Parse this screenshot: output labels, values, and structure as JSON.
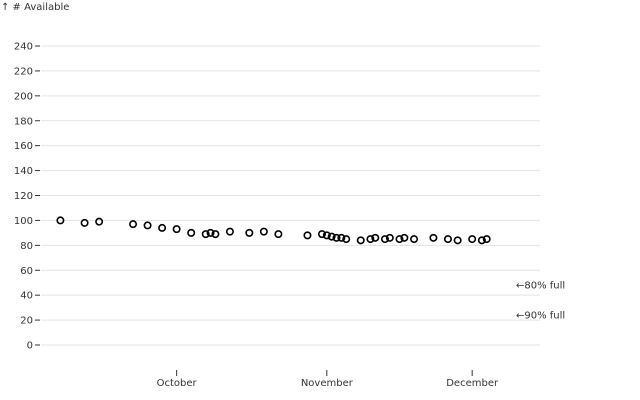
{
  "chart_data": {
    "type": "scatter",
    "ylabel": "↑ # Available",
    "ylim": [
      0,
      240
    ],
    "yticks": [
      0,
      20,
      40,
      60,
      80,
      100,
      120,
      140,
      160,
      180,
      200,
      220,
      240
    ],
    "grid": "horizontal",
    "xaxis": {
      "type": "date",
      "range": [
        "2023-09-03",
        "2023-12-15"
      ],
      "ticks": [
        {
          "label": "October",
          "date": "2023-10-01"
        },
        {
          "label": "November",
          "date": "2023-11-01"
        },
        {
          "label": "December",
          "date": "2023-12-01"
        }
      ]
    },
    "points": [
      {
        "date": "2023-09-07",
        "value": 100
      },
      {
        "date": "2023-09-12",
        "value": 98
      },
      {
        "date": "2023-09-15",
        "value": 99
      },
      {
        "date": "2023-09-22",
        "value": 97
      },
      {
        "date": "2023-09-25",
        "value": 96
      },
      {
        "date": "2023-09-28",
        "value": 94
      },
      {
        "date": "2023-10-01",
        "value": 93
      },
      {
        "date": "2023-10-04",
        "value": 90
      },
      {
        "date": "2023-10-07",
        "value": 89
      },
      {
        "date": "2023-10-08",
        "value": 90
      },
      {
        "date": "2023-10-09",
        "value": 89
      },
      {
        "date": "2023-10-12",
        "value": 91
      },
      {
        "date": "2023-10-16",
        "value": 90
      },
      {
        "date": "2023-10-19",
        "value": 91
      },
      {
        "date": "2023-10-22",
        "value": 89
      },
      {
        "date": "2023-10-28",
        "value": 88
      },
      {
        "date": "2023-10-31",
        "value": 89
      },
      {
        "date": "2023-11-01",
        "value": 88
      },
      {
        "date": "2023-11-02",
        "value": 87
      },
      {
        "date": "2023-11-03",
        "value": 86
      },
      {
        "date": "2023-11-04",
        "value": 86
      },
      {
        "date": "2023-11-05",
        "value": 85
      },
      {
        "date": "2023-11-08",
        "value": 84
      },
      {
        "date": "2023-11-10",
        "value": 85
      },
      {
        "date": "2023-11-11",
        "value": 86
      },
      {
        "date": "2023-11-13",
        "value": 85
      },
      {
        "date": "2023-11-14",
        "value": 86
      },
      {
        "date": "2023-11-16",
        "value": 85
      },
      {
        "date": "2023-11-17",
        "value": 86
      },
      {
        "date": "2023-11-19",
        "value": 85
      },
      {
        "date": "2023-11-23",
        "value": 86
      },
      {
        "date": "2023-11-26",
        "value": 85
      },
      {
        "date": "2023-11-28",
        "value": 84
      },
      {
        "date": "2023-12-01",
        "value": 85
      },
      {
        "date": "2023-12-03",
        "value": 84
      },
      {
        "date": "2023-12-04",
        "value": 85
      }
    ],
    "annotations": [
      {
        "text": "←80% full",
        "value": 48
      },
      {
        "text": "←90% full",
        "value": 24
      }
    ]
  }
}
